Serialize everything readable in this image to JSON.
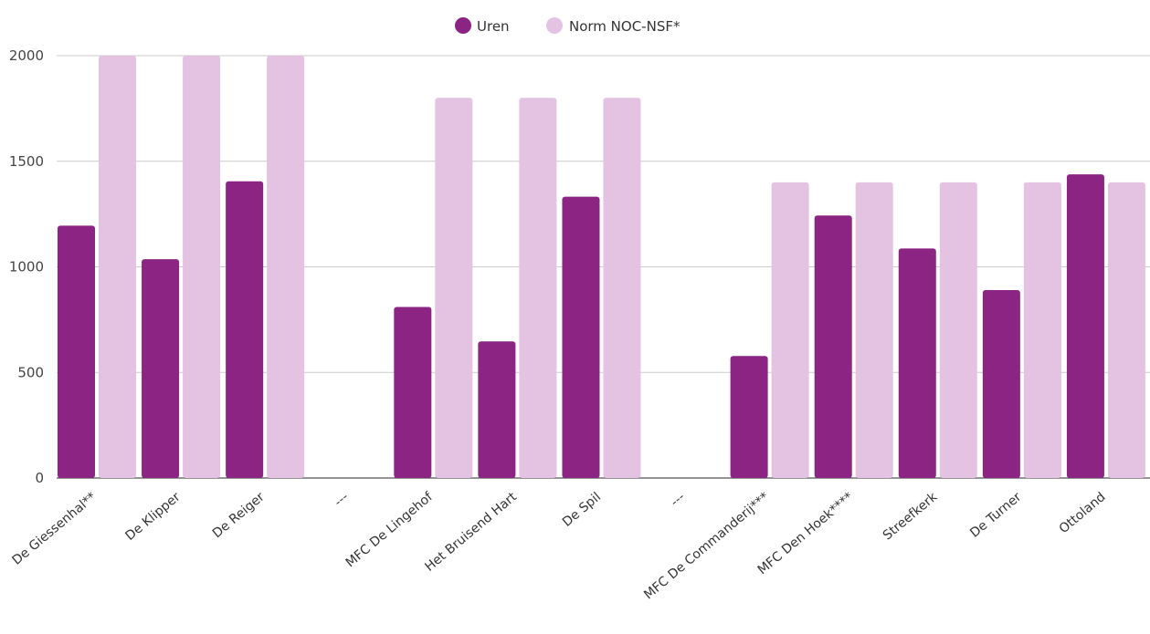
{
  "chart_data": {
    "type": "bar",
    "categories": [
      "De Giessenhal**",
      "De Klipper",
      "De Reiger",
      "---",
      "MFC De Lingehof",
      "Het Bruisend Hart",
      "De Spil",
      "---",
      "MFC De Commanderij***",
      "MFC Den Hoek****",
      "Streefkerk",
      "De Turner",
      "Ottoland"
    ],
    "series": [
      {
        "name": "Uren",
        "color": "#8b2483",
        "values": [
          1195,
          1036,
          1405,
          0,
          810,
          647,
          1332,
          0,
          578,
          1243,
          1087,
          890,
          1438
        ]
      },
      {
        "name": "Norm NOC-NSF*",
        "color": "#e4c3e2",
        "values": [
          2000,
          2000,
          2000,
          0,
          1800,
          1800,
          1800,
          0,
          1400,
          1400,
          1400,
          1400,
          1400
        ]
      }
    ],
    "y_ticks": [
      "0",
      "500",
      "1000",
      "1500",
      "2000"
    ],
    "ylim": [
      0,
      2000
    ],
    "grid": true,
    "legend_position": "top-center"
  }
}
